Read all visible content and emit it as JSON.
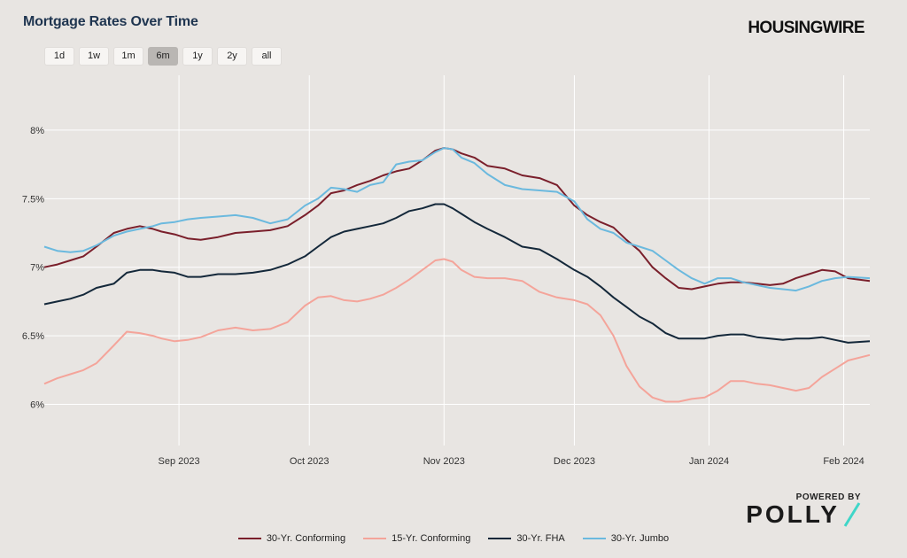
{
  "header": {
    "title": "Mortgage Rates Over Time",
    "brand": "HOUSINGWIRE"
  },
  "range_buttons": [
    {
      "label": "1d",
      "active": false
    },
    {
      "label": "1w",
      "active": false
    },
    {
      "label": "1m",
      "active": false
    },
    {
      "label": "6m",
      "active": true
    },
    {
      "label": "1y",
      "active": false
    },
    {
      "label": "2y",
      "active": false
    },
    {
      "label": "all",
      "active": false
    }
  ],
  "powered": {
    "by_label": "POWERED BY",
    "logo_text": "POLLY",
    "slash_color": "#3fd6c8"
  },
  "chart_data": {
    "type": "line",
    "title": "Mortgage Rates Over Time",
    "xlabel": "",
    "ylabel": "",
    "ylim": [
      5.7,
      8.4
    ],
    "yticks": [
      6,
      6.5,
      7,
      7.5,
      8
    ],
    "ytick_labels": [
      "6%",
      "6.5%",
      "7%",
      "7.5%",
      "8%"
    ],
    "xlim": [
      -8,
      182
    ],
    "xticks": [
      {
        "day": 23,
        "label": "Sep 2023"
      },
      {
        "day": 53,
        "label": "Oct 2023"
      },
      {
        "day": 84,
        "label": "Nov 2023"
      },
      {
        "day": 114,
        "label": "Dec 2023"
      },
      {
        "day": 145,
        "label": "Jan 2024"
      },
      {
        "day": 176,
        "label": "Feb 2024"
      }
    ],
    "grid": true,
    "legend_position": "bottom",
    "x": [
      -8,
      -5,
      -2,
      1,
      4,
      8,
      11,
      14,
      17,
      19,
      22,
      25,
      28,
      32,
      36,
      40,
      44,
      48,
      52,
      55,
      58,
      61,
      64,
      67,
      70,
      73,
      76,
      79,
      82,
      84,
      86,
      88,
      91,
      94,
      98,
      102,
      106,
      110,
      114,
      117,
      120,
      123,
      126,
      129,
      132,
      135,
      138,
      141,
      144,
      147,
      150,
      153,
      156,
      159,
      162,
      165,
      168,
      171,
      174,
      177,
      182
    ],
    "series": [
      {
        "name": "30-Yr. Conforming",
        "color": "#7a1f2b",
        "values": [
          7.0,
          7.02,
          7.05,
          7.08,
          7.15,
          7.25,
          7.28,
          7.3,
          7.28,
          7.26,
          7.24,
          7.21,
          7.2,
          7.22,
          7.25,
          7.26,
          7.27,
          7.3,
          7.38,
          7.45,
          7.54,
          7.56,
          7.6,
          7.63,
          7.67,
          7.7,
          7.72,
          7.78,
          7.85,
          7.87,
          7.86,
          7.83,
          7.8,
          7.74,
          7.72,
          7.67,
          7.65,
          7.6,
          7.45,
          7.38,
          7.33,
          7.29,
          7.2,
          7.12,
          7.0,
          6.92,
          6.85,
          6.84,
          6.86,
          6.88,
          6.89,
          6.89,
          6.88,
          6.87,
          6.88,
          6.92,
          6.95,
          6.98,
          6.97,
          6.92,
          6.9
        ]
      },
      {
        "name": "15-Yr. Conforming",
        "color": "#f4a49a",
        "values": [
          6.15,
          6.19,
          6.22,
          6.25,
          6.3,
          6.43,
          6.53,
          6.52,
          6.5,
          6.48,
          6.46,
          6.47,
          6.49,
          6.54,
          6.56,
          6.54,
          6.55,
          6.6,
          6.72,
          6.78,
          6.79,
          6.76,
          6.75,
          6.77,
          6.8,
          6.85,
          6.91,
          6.98,
          7.05,
          7.06,
          7.04,
          6.98,
          6.93,
          6.92,
          6.92,
          6.9,
          6.82,
          6.78,
          6.76,
          6.73,
          6.65,
          6.5,
          6.28,
          6.13,
          6.05,
          6.02,
          6.02,
          6.04,
          6.05,
          6.1,
          6.17,
          6.17,
          6.15,
          6.14,
          6.12,
          6.1,
          6.12,
          6.2,
          6.26,
          6.32,
          6.36
        ]
      },
      {
        "name": "30-Yr. FHA",
        "color": "#14283a",
        "values": [
          6.73,
          6.75,
          6.77,
          6.8,
          6.85,
          6.88,
          6.96,
          6.98,
          6.98,
          6.97,
          6.96,
          6.93,
          6.93,
          6.95,
          6.95,
          6.96,
          6.98,
          7.02,
          7.08,
          7.15,
          7.22,
          7.26,
          7.28,
          7.3,
          7.32,
          7.36,
          7.41,
          7.43,
          7.46,
          7.46,
          7.43,
          7.39,
          7.33,
          7.28,
          7.22,
          7.15,
          7.13,
          7.06,
          6.98,
          6.93,
          6.86,
          6.78,
          6.71,
          6.64,
          6.59,
          6.52,
          6.48,
          6.48,
          6.48,
          6.5,
          6.51,
          6.51,
          6.49,
          6.48,
          6.47,
          6.48,
          6.48,
          6.49,
          6.47,
          6.45,
          6.46
        ]
      },
      {
        "name": "30-Yr. Jumbo",
        "color": "#6bb9de",
        "values": [
          7.15,
          7.12,
          7.11,
          7.12,
          7.16,
          7.23,
          7.26,
          7.28,
          7.3,
          7.32,
          7.33,
          7.35,
          7.36,
          7.37,
          7.38,
          7.36,
          7.32,
          7.35,
          7.45,
          7.5,
          7.58,
          7.57,
          7.55,
          7.6,
          7.62,
          7.75,
          7.77,
          7.78,
          7.84,
          7.87,
          7.86,
          7.8,
          7.76,
          7.68,
          7.6,
          7.57,
          7.56,
          7.55,
          7.48,
          7.35,
          7.28,
          7.25,
          7.18,
          7.15,
          7.12,
          7.05,
          6.98,
          6.92,
          6.88,
          6.92,
          6.92,
          6.89,
          6.87,
          6.85,
          6.84,
          6.83,
          6.86,
          6.9,
          6.92,
          6.93,
          6.92
        ]
      }
    ]
  }
}
